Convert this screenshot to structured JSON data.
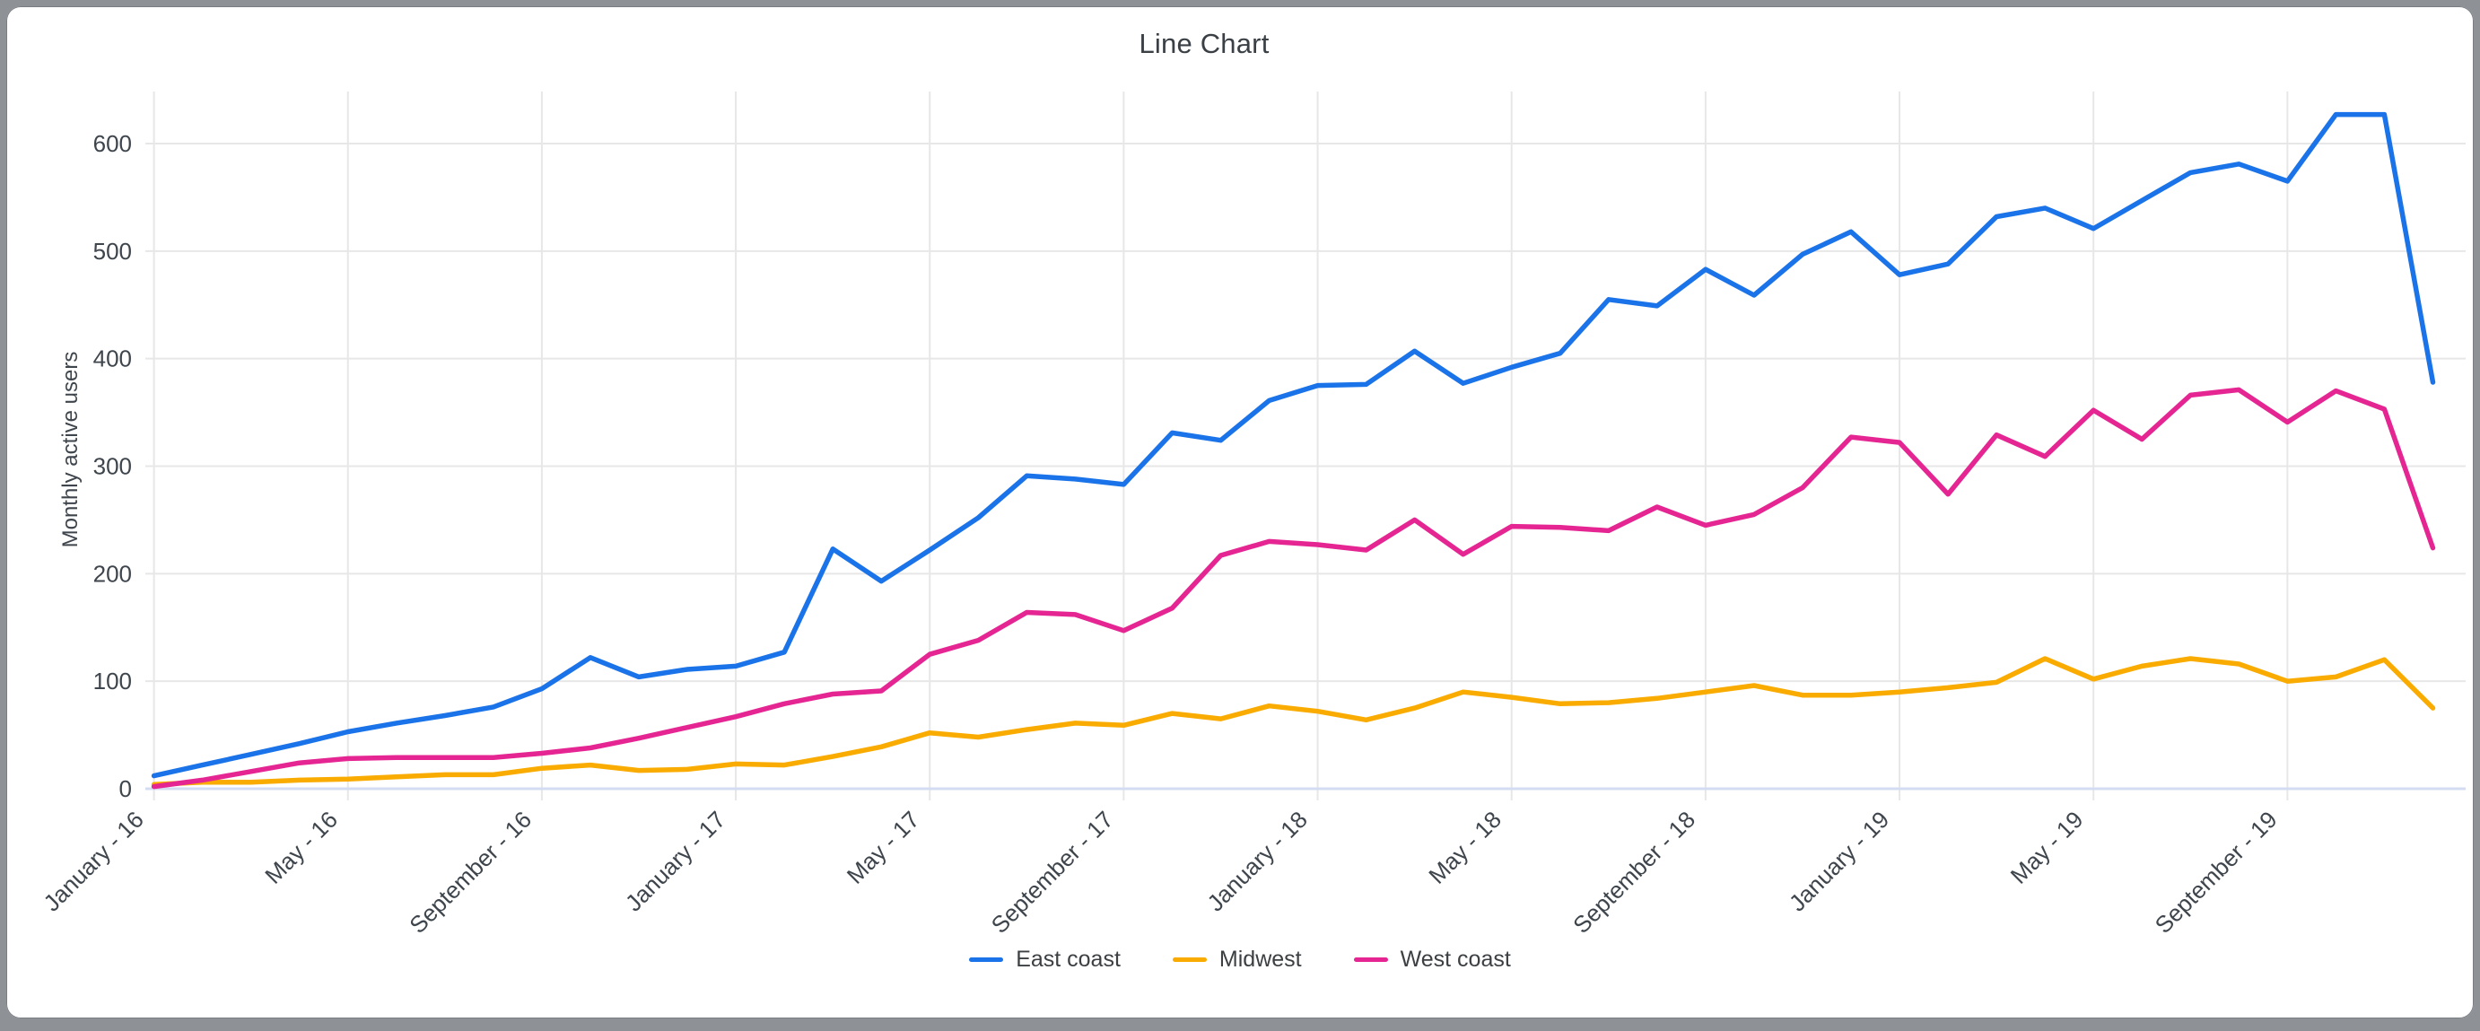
{
  "chart_data": {
    "type": "line",
    "title": "Line Chart",
    "xlabel": "",
    "ylabel": "Monthly active users",
    "y_ticks": [
      0,
      100,
      200,
      300,
      400,
      500,
      600
    ],
    "ylim": [
      0,
      648
    ],
    "grid": true,
    "legend_position": "bottom",
    "x": [
      "January - 16",
      "February - 16",
      "March - 16",
      "April - 16",
      "May - 16",
      "June - 16",
      "July - 16",
      "August - 16",
      "September - 16",
      "October - 16",
      "November - 16",
      "December - 16",
      "January - 17",
      "February - 17",
      "March - 17",
      "April - 17",
      "May - 17",
      "June - 17",
      "July - 17",
      "August - 17",
      "September - 17",
      "October - 17",
      "November - 17",
      "December - 17",
      "January - 18",
      "February - 18",
      "March - 18",
      "April - 18",
      "May - 18",
      "June - 18",
      "July - 18",
      "August - 18",
      "September - 18",
      "October - 18",
      "November - 18",
      "December - 18",
      "January - 19",
      "February - 19",
      "March - 19",
      "April - 19",
      "May - 19",
      "June - 19",
      "July - 19",
      "August - 19",
      "September - 19",
      "October - 19",
      "November - 19",
      "December - 19"
    ],
    "x_tick_labels": [
      "January - 16",
      "May - 16",
      "September - 16",
      "January - 17",
      "May - 17",
      "September - 17",
      "January - 18",
      "May - 18",
      "September - 18",
      "January - 19",
      "May - 19",
      "September - 19"
    ],
    "x_tick_every": 4,
    "series": [
      {
        "name": "East coast",
        "color": "#1A73E8",
        "values": [
          12,
          22,
          32,
          42,
          53,
          61,
          68,
          76,
          93,
          122,
          104,
          111,
          114,
          127,
          223,
          193,
          222,
          252,
          291,
          288,
          283,
          331,
          324,
          361,
          375,
          376,
          407,
          377,
          392,
          405,
          455,
          449,
          483,
          459,
          497,
          518,
          478,
          488,
          532,
          540,
          521,
          547,
          573,
          581,
          565,
          627,
          627,
          378
        ]
      },
      {
        "name": "Midwest",
        "color": "#F9AB00",
        "values": [
          4,
          6,
          6,
          8,
          9,
          11,
          13,
          13,
          19,
          22,
          17,
          18,
          23,
          22,
          30,
          39,
          52,
          48,
          55,
          61,
          59,
          70,
          65,
          77,
          72,
          64,
          75,
          90,
          85,
          79,
          80,
          84,
          90,
          96,
          87,
          87,
          90,
          94,
          99,
          121,
          102,
          114,
          121,
          116,
          100,
          104,
          120,
          75
        ]
      },
      {
        "name": "West coast",
        "color": "#E52592",
        "values": [
          2,
          8,
          16,
          24,
          28,
          29,
          29,
          29,
          33,
          38,
          47,
          57,
          67,
          79,
          88,
          91,
          125,
          138,
          164,
          162,
          147,
          168,
          217,
          230,
          227,
          222,
          250,
          218,
          244,
          243,
          240,
          262,
          245,
          255,
          280,
          327,
          322,
          274,
          329,
          309,
          352,
          325,
          366,
          371,
          341,
          370,
          353,
          224
        ]
      }
    ]
  },
  "colors": {
    "card_background": "#ffffff",
    "outer_background": "#8e9196",
    "grid_line": "#e7e7e7",
    "zero_baseline": "#d3dcf2",
    "title_text": "#3a4045",
    "axis_text": "#3e454c",
    "legend_text": "#3c4043"
  }
}
